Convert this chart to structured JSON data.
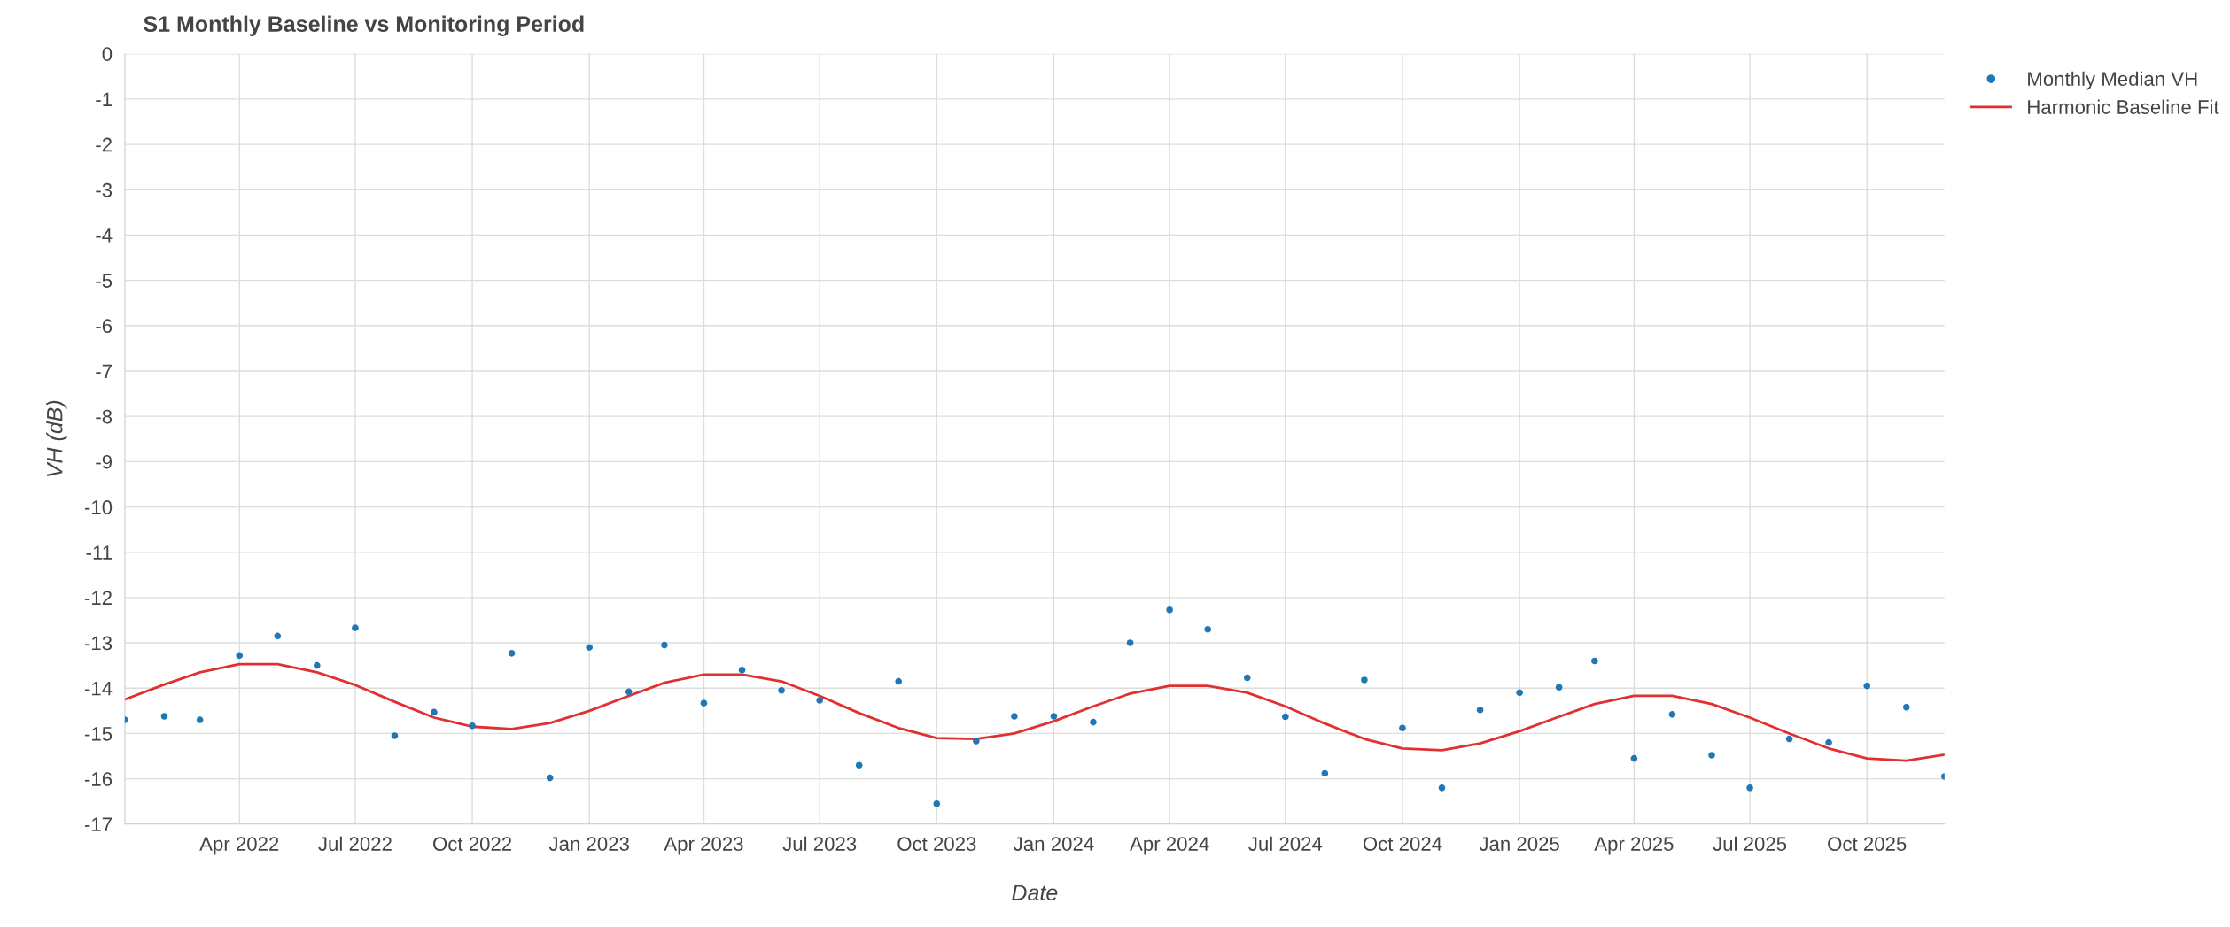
{
  "chart_data": {
    "type": "scatter",
    "title": "S1 Monthly Baseline vs Monitoring Period",
    "xlabel": "Date",
    "ylabel": "VH (dB)",
    "x": [
      "2022-01",
      "2022-02",
      "2022-03",
      "2022-04",
      "2022-05",
      "2022-06",
      "2022-07",
      "2022-08",
      "2022-09",
      "2022-10",
      "2022-11",
      "2022-12",
      "2023-01",
      "2023-02",
      "2023-03",
      "2023-04",
      "2023-05",
      "2023-06",
      "2023-07",
      "2023-08",
      "2023-09",
      "2023-10",
      "2023-11",
      "2023-12",
      "2024-01",
      "2024-02",
      "2024-03",
      "2024-04",
      "2024-05",
      "2024-06",
      "2024-07",
      "2024-08",
      "2024-09",
      "2024-10",
      "2024-11",
      "2024-12",
      "2025-01",
      "2025-02",
      "2025-03",
      "2025-04",
      "2025-05",
      "2025-06",
      "2025-07",
      "2025-08",
      "2025-09",
      "2025-10",
      "2025-11",
      "2025-12"
    ],
    "series": [
      {
        "name": "Monthly Median VH",
        "color": "#1f77b4",
        "marker": "circle",
        "values": [
          -14.7,
          -14.62,
          -14.7,
          -13.28,
          -12.85,
          -13.5,
          -12.67,
          -15.05,
          -14.53,
          -14.83,
          -13.23,
          -15.98,
          -13.1,
          -14.08,
          -13.05,
          -14.33,
          -13.6,
          -14.05,
          -14.27,
          -15.7,
          -13.85,
          -16.55,
          -15.17,
          -14.62,
          -14.62,
          -14.75,
          -13.0,
          -12.27,
          -12.7,
          -13.77,
          -14.63,
          -15.88,
          -13.82,
          -14.88,
          -16.2,
          -14.48,
          -14.1,
          -13.98,
          -13.4,
          -15.55,
          -14.58,
          -15.48,
          -16.2,
          -15.12,
          -15.2,
          -13.95,
          -14.42,
          -15.95
        ]
      },
      {
        "name": "Harmonic Baseline Fit",
        "type": "line",
        "color": "#e03131",
        "line_style": "solid",
        "values": [
          -14.25,
          -13.92,
          -13.65,
          -13.47,
          -13.47,
          -13.65,
          -13.93,
          -14.3,
          -14.65,
          -14.85,
          -14.9,
          -14.77,
          -14.5,
          -14.17,
          -13.88,
          -13.7,
          -13.7,
          -13.85,
          -14.17,
          -14.55,
          -14.88,
          -15.1,
          -15.12,
          -15.0,
          -14.73,
          -14.4,
          -14.12,
          -13.95,
          -13.95,
          -14.1,
          -14.4,
          -14.78,
          -15.12,
          -15.33,
          -15.37,
          -15.22,
          -14.95,
          -14.63,
          -14.35,
          -14.17,
          -14.17,
          -14.35,
          -14.65,
          -15.0,
          -15.33,
          -15.55,
          -15.6,
          -15.47
        ]
      }
    ],
    "xlim": [
      "2022-01",
      "2025-12"
    ],
    "xticks": [
      {
        "value": "2022-04",
        "label": "Apr 2022"
      },
      {
        "value": "2022-07",
        "label": "Jul 2022"
      },
      {
        "value": "2022-10",
        "label": "Oct 2022"
      },
      {
        "value": "2023-01",
        "label": "Jan 2023"
      },
      {
        "value": "2023-04",
        "label": "Apr 2023"
      },
      {
        "value": "2023-07",
        "label": "Jul 2023"
      },
      {
        "value": "2023-10",
        "label": "Oct 2023"
      },
      {
        "value": "2024-01",
        "label": "Jan 2024"
      },
      {
        "value": "2024-04",
        "label": "Apr 2024"
      },
      {
        "value": "2024-07",
        "label": "Jul 2024"
      },
      {
        "value": "2024-10",
        "label": "Oct 2024"
      },
      {
        "value": "2025-01",
        "label": "Jan 2025"
      },
      {
        "value": "2025-04",
        "label": "Apr 2025"
      },
      {
        "value": "2025-07",
        "label": "Jul 2025"
      },
      {
        "value": "2025-10",
        "label": "Oct 2025"
      }
    ],
    "ylim": [
      -17,
      0
    ],
    "yticks": [
      0,
      -1,
      -2,
      -3,
      -4,
      -5,
      -6,
      -7,
      -8,
      -9,
      -10,
      -11,
      -12,
      -13,
      -14,
      -15,
      -16,
      -17
    ],
    "grid": true,
    "legend": "top right"
  }
}
